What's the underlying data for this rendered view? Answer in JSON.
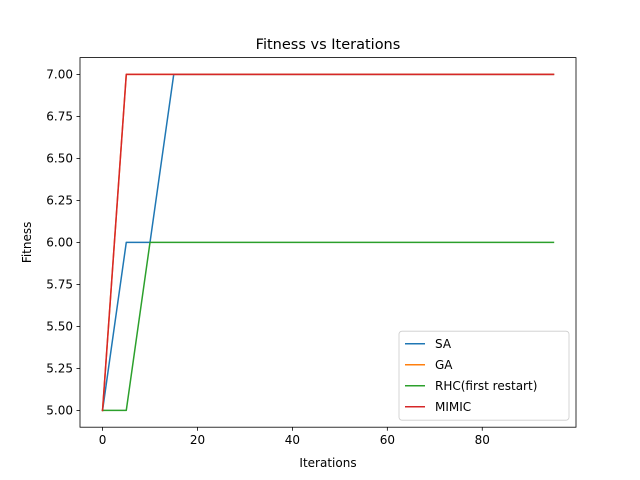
{
  "chart_data": {
    "type": "line",
    "title": "Fitness vs Iterations",
    "xlabel": "Iterations",
    "ylabel": "Fitness",
    "xlim": [
      -4.75,
      99.75
    ],
    "ylim": [
      4.9,
      7.1
    ],
    "xticks": [
      0,
      20,
      40,
      60,
      80
    ],
    "yticks": [
      5.0,
      5.25,
      5.5,
      5.75,
      6.0,
      6.25,
      6.5,
      6.75,
      7.0
    ],
    "ytick_labels": [
      "5.00",
      "5.25",
      "5.50",
      "5.75",
      "6.00",
      "6.25",
      "6.50",
      "6.75",
      "7.00"
    ],
    "grid": false,
    "legend": "lower-right",
    "series": [
      {
        "name": "SA",
        "color": "#1f77b4",
        "x": [
          0,
          5,
          10,
          15,
          20,
          25,
          30,
          35,
          40,
          45,
          50,
          55,
          60,
          65,
          70,
          75,
          80,
          85,
          90,
          95
        ],
        "y": [
          5,
          6,
          6,
          7,
          7,
          7,
          7,
          7,
          7,
          7,
          7,
          7,
          7,
          7,
          7,
          7,
          7,
          7,
          7,
          7
        ]
      },
      {
        "name": "GA",
        "color": "#ff7f0e",
        "x": [
          0,
          5,
          10,
          15,
          20,
          25,
          30,
          35,
          40,
          45,
          50,
          55,
          60,
          65,
          70,
          75,
          80,
          85,
          90,
          95
        ],
        "y": [
          5,
          7,
          7,
          7,
          7,
          7,
          7,
          7,
          7,
          7,
          7,
          7,
          7,
          7,
          7,
          7,
          7,
          7,
          7,
          7
        ]
      },
      {
        "name": "RHC(first restart)",
        "color": "#2ca02c",
        "x": [
          0,
          5,
          10,
          15,
          20,
          25,
          30,
          35,
          40,
          45,
          50,
          55,
          60,
          65,
          70,
          75,
          80,
          85,
          90,
          95
        ],
        "y": [
          5,
          5,
          6,
          6,
          6,
          6,
          6,
          6,
          6,
          6,
          6,
          6,
          6,
          6,
          6,
          6,
          6,
          6,
          6,
          6
        ]
      },
      {
        "name": "MIMIC",
        "color": "#d62728",
        "x": [
          0,
          5,
          10,
          15,
          20,
          25,
          30,
          35,
          40,
          45,
          50,
          55,
          60,
          65,
          70,
          75,
          80,
          85,
          90,
          95
        ],
        "y": [
          5,
          7,
          7,
          7,
          7,
          7,
          7,
          7,
          7,
          7,
          7,
          7,
          7,
          7,
          7,
          7,
          7,
          7,
          7,
          7
        ]
      }
    ]
  }
}
